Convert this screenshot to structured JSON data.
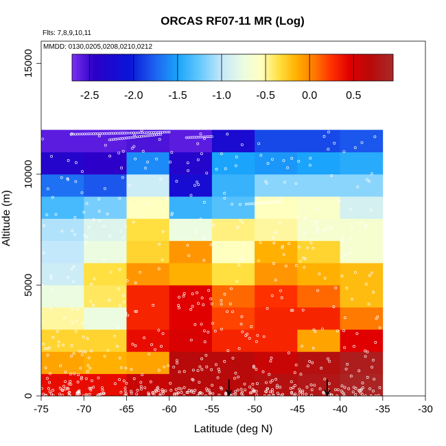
{
  "chart_data": {
    "type": "heatmap",
    "title": "ORCAS RF07-11 MR (Log)",
    "annotations": [
      "Flts: 7,8,9,10,11",
      "MMDD: 0130,0205,0208,0210,0212"
    ],
    "xlabel": "Latitude (deg N)",
    "ylabel": "Altitude (m)",
    "xlim": [
      -75,
      -30
    ],
    "ylim": [
      0,
      16000
    ],
    "x_ticks": [
      -75,
      -70,
      -65,
      -60,
      -55,
      -50,
      -45,
      -40,
      -35,
      -30
    ],
    "x_tick_labels": [
      "-75",
      "-70",
      "-65",
      "-60",
      "-55",
      "-50",
      "-45",
      "-40",
      "-35",
      "-30"
    ],
    "y_ticks": [
      0,
      5000,
      10000,
      15000
    ],
    "y_tick_labels": [
      "0",
      "5000",
      "10000",
      "15000"
    ],
    "colorbar": {
      "range": [
        -2.7,
        0.95
      ],
      "ticks": [
        -2.5,
        -2.0,
        -1.5,
        -1.0,
        -0.5,
        0.0,
        0.5
      ],
      "tick_labels": [
        "-2.5",
        "-2.0",
        "-1.5",
        "-1.0",
        "-0.5",
        "0.0",
        "0.5"
      ],
      "stops": [
        {
          "v": -2.7,
          "c": "#7b2ff0"
        },
        {
          "v": -2.45,
          "c": "#2c00c8"
        },
        {
          "v": -2.05,
          "c": "#0a14d8"
        },
        {
          "v": -1.75,
          "c": "#1e64f0"
        },
        {
          "v": -1.5,
          "c": "#1aa4fb"
        },
        {
          "v": -1.25,
          "c": "#64c8fc"
        },
        {
          "v": -1.0,
          "c": "#c4e8fb"
        },
        {
          "v": -0.75,
          "c": "#ecfce0"
        },
        {
          "v": -0.55,
          "c": "#ffffc0"
        },
        {
          "v": -0.35,
          "c": "#ffe040"
        },
        {
          "v": -0.15,
          "c": "#ffb000"
        },
        {
          "v": 0.05,
          "c": "#ff7a00"
        },
        {
          "v": 0.25,
          "c": "#ff3000"
        },
        {
          "v": 0.45,
          "c": "#e00000"
        },
        {
          "v": 0.7,
          "c": "#b80a0a"
        },
        {
          "v": 0.95,
          "c": "#a82a2a"
        }
      ]
    },
    "lat_bins": [
      -75,
      -70,
      -65,
      -60,
      -55,
      -50,
      -45,
      -40,
      -35
    ],
    "alt_bins": [
      0,
      1000,
      2000,
      3000,
      4000,
      5000,
      6000,
      7000,
      8000,
      9000,
      10000,
      11000,
      12000
    ],
    "values": [
      [
        0.4,
        0.4,
        0.6,
        0.7,
        0.7,
        0.75,
        0.8,
        0.9
      ],
      [
        -0.1,
        -0.15,
        -0.1,
        0.7,
        0.7,
        0.6,
        0.75,
        0.85
      ],
      [
        -0.3,
        -0.3,
        0.4,
        0.5,
        0.3,
        0.3,
        -0.1,
        0.45
      ],
      [
        -0.5,
        -0.75,
        0.3,
        0.45,
        0.2,
        0.3,
        0.3,
        0.05
      ],
      [
        -0.75,
        -0.4,
        0.3,
        0.45,
        0.1,
        0.25,
        0.1,
        -0.2
      ],
      [
        -0.95,
        -0.35,
        -0.05,
        -0.15,
        -0.35,
        -0.05,
        -0.15,
        -0.2
      ],
      [
        -1.0,
        -0.75,
        -0.3,
        -0.05,
        -0.55,
        -0.15,
        -0.3,
        -0.65
      ],
      [
        -1.05,
        -0.85,
        -0.35,
        -0.75,
        -0.45,
        -0.5,
        -0.65,
        -0.65
      ],
      [
        -1.35,
        -1.2,
        -0.55,
        -1.4,
        -1.3,
        -0.55,
        -0.6,
        -0.9
      ],
      [
        -1.7,
        -1.8,
        -0.95,
        -2.2,
        -1.4,
        -1.15,
        -1.15,
        -1.15
      ],
      [
        -2.35,
        -2.45,
        -1.6,
        -2.35,
        -1.5,
        -1.55,
        -1.5,
        -1.45
      ],
      [
        -2.6,
        -2.6,
        -2.55,
        -2.6,
        -2.25,
        -1.85,
        -1.85,
        -1.8
      ]
    ],
    "grid": false,
    "legend": "colorbar top",
    "arrows_lat": [
      -53,
      -41.5
    ]
  }
}
